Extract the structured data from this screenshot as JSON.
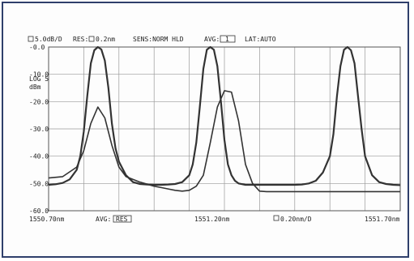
{
  "header": {
    "scale": "5.0dB/D",
    "res_label": "RES:",
    "res_value": "0.2nm",
    "sens": "SENS:NORM HLD",
    "avg_label": "AVG:",
    "avg_value": "1",
    "smpl": "LAT:AUTO"
  },
  "left_readout": {
    "line1": "LOG 5",
    "line2": "dBm"
  },
  "footer": {
    "start": "1550.70nm",
    "mid_box_label": "AVG:",
    "mid_box_value": "RES",
    "center": "1551.20nm",
    "span_value": "0.20nm/D",
    "stop": "1551.70nm"
  },
  "chart_data": {
    "type": "line",
    "xlabel": "",
    "ylabel": "",
    "xlim": [
      1550.7,
      1551.7
    ],
    "ylim": [
      -60.0,
      0.0
    ],
    "grid": true,
    "y_tick_labels": [
      "-0.0",
      "-10.0",
      "-20.0",
      "-30.0",
      "-40.0",
      "-50.0",
      "-60.0"
    ],
    "y_ticks": [
      0,
      -10,
      -20,
      -30,
      -40,
      -50,
      -60
    ],
    "x_tick_labels": [
      "1550.70nm",
      "1551.20nm",
      "1551.70nm"
    ],
    "x_ticks": [
      1550.7,
      1551.2,
      1551.7
    ],
    "series": [
      {
        "color": "#333333",
        "x": [
          1550.7,
          1550.72,
          1550.74,
          1550.76,
          1550.78,
          1550.79,
          1550.8,
          1550.81,
          1550.82,
          1550.83,
          1550.84,
          1550.85,
          1550.86,
          1550.87,
          1550.88,
          1550.89,
          1550.9,
          1550.92,
          1550.94,
          1550.96,
          1550.98,
          1551.0,
          1551.02,
          1551.04,
          1551.06,
          1551.08,
          1551.1,
          1551.11,
          1551.12,
          1551.13,
          1551.14,
          1551.15,
          1551.16,
          1551.17,
          1551.18,
          1551.19,
          1551.2,
          1551.21,
          1551.22,
          1551.23,
          1551.24,
          1551.26,
          1551.28,
          1551.3,
          1551.32,
          1551.34,
          1551.36,
          1551.38,
          1551.4,
          1551.42,
          1551.44,
          1551.46,
          1551.48,
          1551.5,
          1551.51,
          1551.52,
          1551.53,
          1551.54,
          1551.55,
          1551.56,
          1551.57,
          1551.58,
          1551.59,
          1551.6,
          1551.62,
          1551.64,
          1551.66,
          1551.68,
          1551.7
        ],
        "y": [
          -50.5,
          -50.3,
          -49.8,
          -48.5,
          -45,
          -40,
          -31,
          -18,
          -6,
          -1.2,
          0,
          -0.9,
          -5,
          -15,
          -28,
          -37,
          -42,
          -47,
          -49.5,
          -50.2,
          -50.4,
          -50.5,
          -50.5,
          -50.4,
          -50.2,
          -49.5,
          -47,
          -43,
          -35,
          -22,
          -8,
          -1,
          0,
          -1,
          -7,
          -20,
          -34,
          -43,
          -47,
          -49,
          -50,
          -50.5,
          -50.5,
          -50.5,
          -50.5,
          -50.5,
          -50.5,
          -50.5,
          -50.5,
          -50.4,
          -50,
          -49,
          -46,
          -40,
          -32,
          -18,
          -7,
          -1,
          0,
          -1.2,
          -6,
          -18,
          -30,
          -40,
          -47,
          -49.5,
          -50.2,
          -50.5,
          -50.6
        ]
      },
      {
        "color": "#333333",
        "x": [
          1550.7,
          1550.74,
          1550.78,
          1550.8,
          1550.82,
          1550.84,
          1550.86,
          1550.88,
          1550.9,
          1550.92,
          1550.96,
          1551.0,
          1551.02,
          1551.04,
          1551.06,
          1551.08,
          1551.1,
          1551.12,
          1551.14,
          1551.16,
          1551.18,
          1551.2,
          1551.22,
          1551.24,
          1551.26,
          1551.28,
          1551.3,
          1551.32,
          1551.34,
          1551.36,
          1551.4,
          1551.44,
          1551.48,
          1551.52,
          1551.56,
          1551.6,
          1551.64,
          1551.7
        ],
        "y": [
          -48,
          -47.5,
          -44,
          -38,
          -28,
          -22,
          -26,
          -36,
          -44,
          -47.5,
          -49.5,
          -51,
          -51.5,
          -52,
          -52.5,
          -52.8,
          -52.5,
          -51,
          -47,
          -35,
          -22,
          -16,
          -16.5,
          -27,
          -43,
          -50,
          -52.8,
          -53,
          -53,
          -53,
          -53,
          -53,
          -53,
          -53,
          -53,
          -53,
          -53,
          -53
        ]
      }
    ]
  }
}
